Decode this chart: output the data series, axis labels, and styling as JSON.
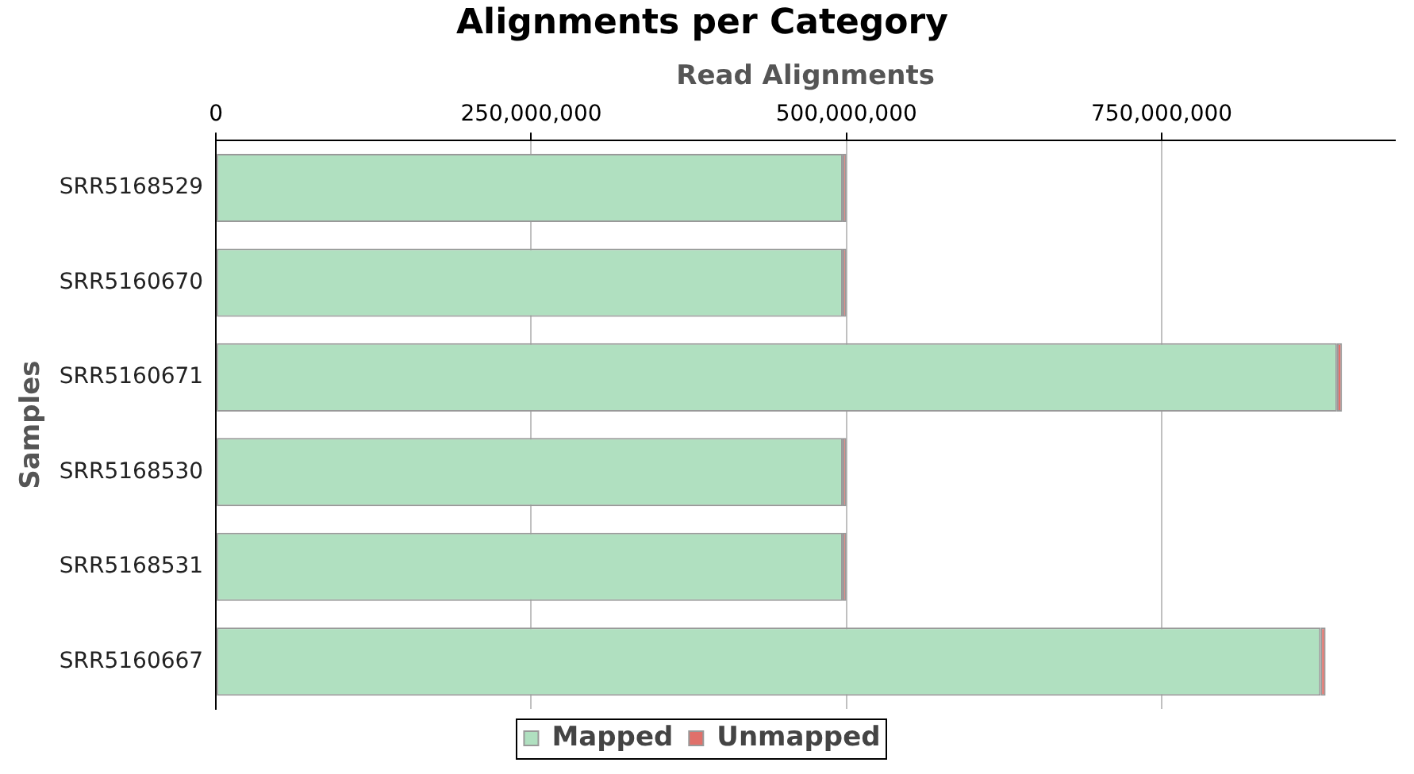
{
  "chart_data": {
    "type": "bar",
    "orientation": "horizontal",
    "stacked": true,
    "title": "Alignments per Category",
    "xlabel": "Read Alignments",
    "ylabel": "Samples",
    "categories": [
      "SRR5168529",
      "SRR5160670",
      "SRR5160671",
      "SRR5168530",
      "SRR5168531",
      "SRR5160667"
    ],
    "series": [
      {
        "name": "Mapped",
        "color": "#b0e0c0",
        "values": [
          497000000,
          497000000,
          889000000,
          497000000,
          497000000,
          876000000
        ]
      },
      {
        "name": "Unmapped",
        "color": "#e0706a",
        "values": [
          3000000,
          3000000,
          4000000,
          3000000,
          3000000,
          4000000
        ]
      }
    ],
    "xlim": [
      0,
      935000000
    ],
    "xticks": [
      {
        "value": 0,
        "label": "0"
      },
      {
        "value": 250000000,
        "label": "250,000,000"
      },
      {
        "value": 500000000,
        "label": "500,000,000"
      },
      {
        "value": 750000000,
        "label": "750,000,000"
      }
    ],
    "grid": "x",
    "legend": "bottom"
  }
}
